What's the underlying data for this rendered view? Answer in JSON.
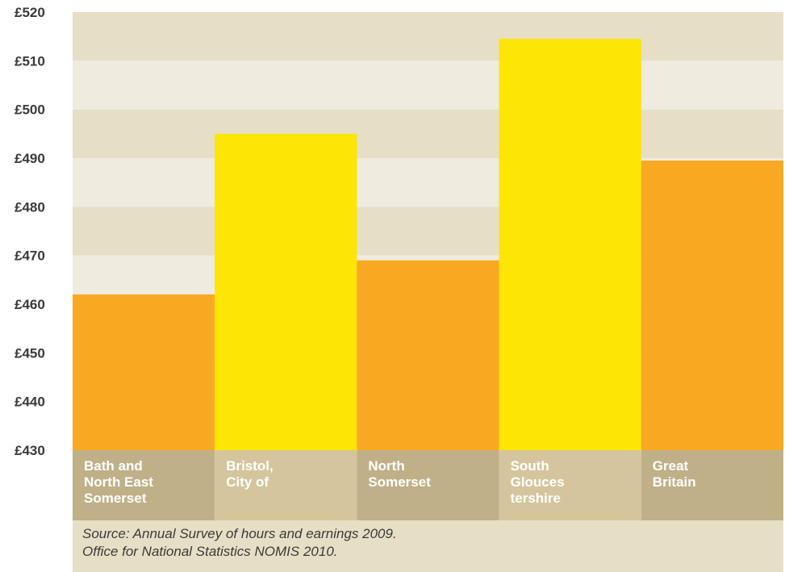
{
  "colors": {
    "band_dark": "#e6dfc6",
    "band_light": "#f0ebdf",
    "bar_orange": "#f9a921",
    "bar_yellow": "#fde506",
    "label_band_dark": "#c0b088",
    "label_band_light": "#d4c59c"
  },
  "chart_data": {
    "type": "bar",
    "categories": [
      [
        "Bath and",
        "North East",
        "Somerset"
      ],
      [
        "Bristol,",
        "City of"
      ],
      [
        "North",
        "Somerset"
      ],
      [
        "South",
        "Glouces",
        "tershire"
      ],
      [
        "Great",
        "Britain"
      ]
    ],
    "values": [
      462,
      495,
      469,
      514.5,
      489.5
    ],
    "bar_colors": [
      "#f9a921",
      "#fde506",
      "#f9a921",
      "#fde506",
      "#f9a921"
    ],
    "ylim": [
      430,
      520
    ],
    "yticks": [
      "£520",
      "£510",
      "£500",
      "£490",
      "£480",
      "£470",
      "£460",
      "£450",
      "£440",
      "£430"
    ],
    "grid": "alternating horizontal bands"
  },
  "source": {
    "line1": "Source: Annual Survey of hours and earnings 2009.",
    "line2": "Office for National Statistics NOMIS 2010."
  }
}
